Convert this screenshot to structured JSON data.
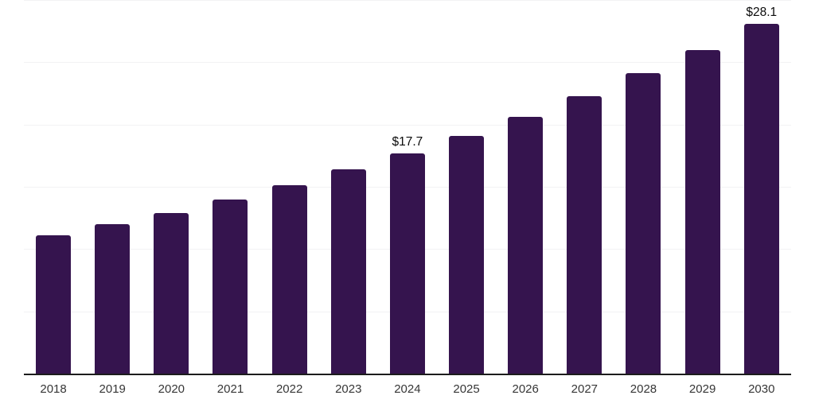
{
  "chart_data": {
    "type": "bar",
    "categories": [
      "2018",
      "2019",
      "2020",
      "2021",
      "2022",
      "2023",
      "2024",
      "2025",
      "2026",
      "2027",
      "2028",
      "2029",
      "2030"
    ],
    "values": [
      11.1,
      12.0,
      12.9,
      14.0,
      15.1,
      16.4,
      17.7,
      19.1,
      20.6,
      22.3,
      24.1,
      26.0,
      28.1
    ],
    "data_labels": [
      "",
      "",
      "",
      "",
      "",
      "",
      "$17.7",
      "",
      "",
      "",
      "",
      "",
      "$28.1"
    ],
    "value_prefix": "$",
    "ylim": [
      0,
      30
    ],
    "grid_step": 5,
    "grid": true,
    "legend": false,
    "y_axis_labels_visible": false,
    "colors": {
      "bar": "#35144E",
      "grid": "#f2f2f4",
      "axis": "#1c1c1c",
      "tick_label": "#363636",
      "data_label": "#0b0b0b",
      "background": "#ffffff"
    }
  }
}
